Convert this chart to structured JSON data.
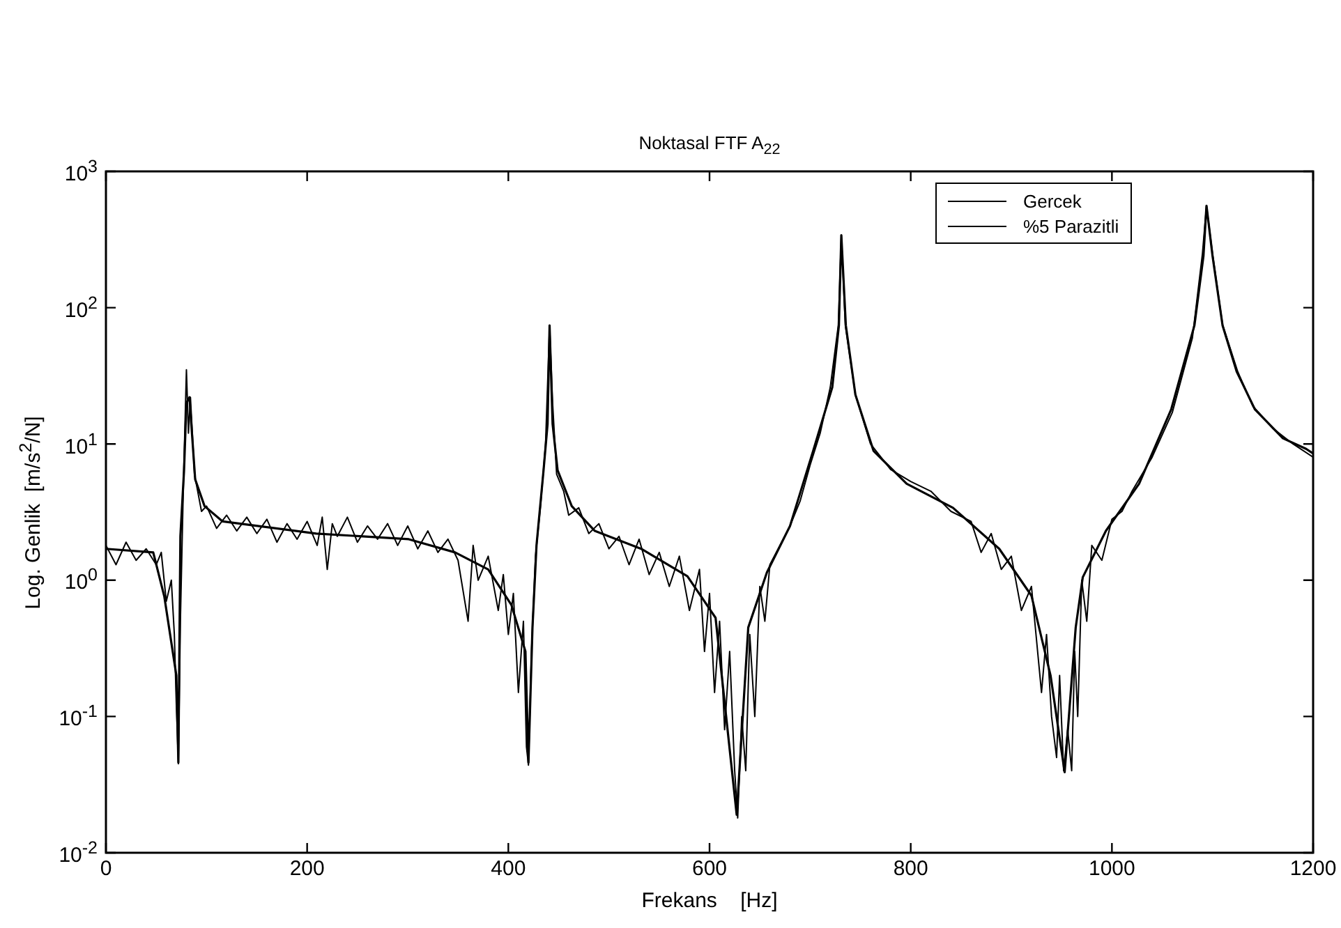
{
  "chart_data": {
    "type": "line",
    "title": "Noktasal FTF A$_{22}$",
    "xlabel": "Frekans    [Hz]",
    "ylabel": "Log. Genlik  [m/s$^{2}$/N]",
    "xlim": [
      0,
      1200
    ],
    "xticks": [
      0,
      200,
      400,
      600,
      800,
      1000,
      1200
    ],
    "ylim": [
      0.01,
      1000
    ],
    "yticks": [
      {
        "value": 0.01,
        "label": "10$^{-2}$"
      },
      {
        "value": 0.1,
        "label": "10$^{-1}$"
      },
      {
        "value": 1,
        "label": "10$^{0}$"
      },
      {
        "value": 10,
        "label": "10$^{1}$"
      },
      {
        "value": 100,
        "label": "10$^{2}$"
      },
      {
        "value": 1000,
        "label": "10$^{3}$"
      }
    ],
    "log": "y",
    "grid": false,
    "legend": "top right",
    "marker": "none",
    "line_style": "solid",
    "series": [
      {
        "name": "Gercek",
        "color": "#000000",
        "x": [
          0,
          47,
          58,
          70,
          72,
          74,
          77.6,
          80,
          83,
          88.7,
          98,
          116,
          209,
          301,
          347,
          380,
          403,
          417,
          420,
          424,
          428,
          435,
          439,
          441,
          444,
          449,
          463,
          486,
          532,
          578,
          606,
          627,
          638.5,
          657,
          680,
          703,
          722,
          728.6,
          731,
          735.5,
          745,
          763,
          796,
          842,
          888,
          920,
          939,
          953,
          964,
          971,
          994,
          1027,
          1059,
          1082,
          1091,
          1094,
          1100,
          1110,
          1124,
          1142,
          1170,
          1193,
          1200
        ],
        "values": [
          1.7,
          1.6,
          0.76,
          0.2,
          0.046,
          2.1,
          6.3,
          20,
          22,
          5.5,
          3.5,
          2.7,
          2.2,
          2.0,
          1.6,
          1.2,
          0.66,
          0.3,
          0.046,
          0.45,
          1.8,
          6.4,
          14,
          74,
          14,
          6.4,
          3.5,
          2.3,
          1.7,
          1.07,
          0.53,
          0.019,
          0.45,
          1.14,
          2.5,
          8.9,
          26,
          74,
          340,
          74,
          23,
          8.9,
          5.1,
          3.4,
          1.7,
          0.77,
          0.2,
          0.039,
          0.45,
          1.05,
          2.3,
          5.1,
          18,
          74,
          240,
          560,
          240,
          74,
          34,
          18,
          11,
          9.2,
          8.5
        ]
      },
      {
        "name": "%5 Parazitli",
        "color": "#000000",
        "x": [
          0,
          10,
          20,
          30,
          40,
          50,
          55,
          60,
          65,
          68,
          70,
          72,
          74,
          77,
          80,
          82,
          84,
          88,
          95,
          100,
          110,
          120,
          130,
          140,
          150,
          160,
          170,
          180,
          190,
          200,
          210,
          215,
          220,
          225,
          230,
          240,
          250,
          260,
          270,
          280,
          290,
          300,
          310,
          320,
          330,
          340,
          350,
          360,
          365,
          370,
          380,
          390,
          395,
          400,
          405,
          410,
          415,
          418,
          420,
          423,
          427,
          432,
          437,
          441,
          444,
          448,
          455,
          460,
          470,
          480,
          490,
          500,
          510,
          520,
          530,
          540,
          550,
          560,
          570,
          580,
          590,
          595,
          600,
          605,
          610,
          615,
          620,
          625,
          628,
          632,
          636,
          640,
          645,
          650,
          655,
          660,
          670,
          680,
          690,
          700,
          710,
          720,
          728,
          731,
          735,
          745,
          760,
          780,
          800,
          820,
          840,
          860,
          870,
          880,
          890,
          900,
          910,
          920,
          930,
          935,
          940,
          945,
          948,
          952,
          956,
          960,
          963,
          966,
          970,
          975,
          980,
          990,
          1000,
          1010,
          1020,
          1040,
          1060,
          1080,
          1090,
          1094,
          1100,
          1110,
          1125,
          1140,
          1160,
          1180,
          1200
        ],
        "values": [
          1.8,
          1.3,
          1.9,
          1.4,
          1.7,
          1.3,
          1.6,
          0.7,
          1.0,
          0.4,
          0.12,
          0.045,
          0.5,
          5,
          35,
          12,
          22,
          6,
          3.2,
          3.5,
          2.4,
          3.0,
          2.3,
          2.9,
          2.2,
          2.8,
          1.9,
          2.6,
          2.0,
          2.7,
          1.8,
          2.9,
          1.2,
          2.6,
          2.1,
          2.9,
          1.9,
          2.5,
          2.0,
          2.6,
          1.8,
          2.5,
          1.7,
          2.3,
          1.6,
          2.0,
          1.4,
          0.5,
          1.8,
          1.0,
          1.5,
          0.6,
          1.1,
          0.4,
          0.8,
          0.15,
          0.5,
          0.06,
          0.044,
          0.3,
          1.5,
          3.5,
          10,
          74,
          20,
          6,
          4.5,
          3.0,
          3.4,
          2.2,
          2.6,
          1.7,
          2.1,
          1.3,
          2.0,
          1.1,
          1.6,
          0.9,
          1.5,
          0.6,
          1.2,
          0.3,
          0.8,
          0.15,
          0.5,
          0.08,
          0.3,
          0.04,
          0.018,
          0.1,
          0.04,
          0.4,
          0.1,
          0.9,
          0.5,
          1.3,
          1.8,
          2.5,
          3.8,
          7,
          12,
          26,
          74,
          340,
          74,
          23,
          10,
          6.5,
          5.3,
          4.5,
          3.2,
          2.7,
          1.6,
          2.2,
          1.2,
          1.5,
          0.6,
          0.9,
          0.15,
          0.4,
          0.1,
          0.05,
          0.2,
          0.04,
          0.08,
          0.04,
          0.3,
          0.1,
          1.0,
          0.5,
          1.8,
          1.4,
          2.8,
          3.2,
          4.5,
          8,
          17,
          60,
          250,
          560,
          250,
          75,
          34,
          19,
          13,
          10,
          8
        ]
      }
    ]
  }
}
